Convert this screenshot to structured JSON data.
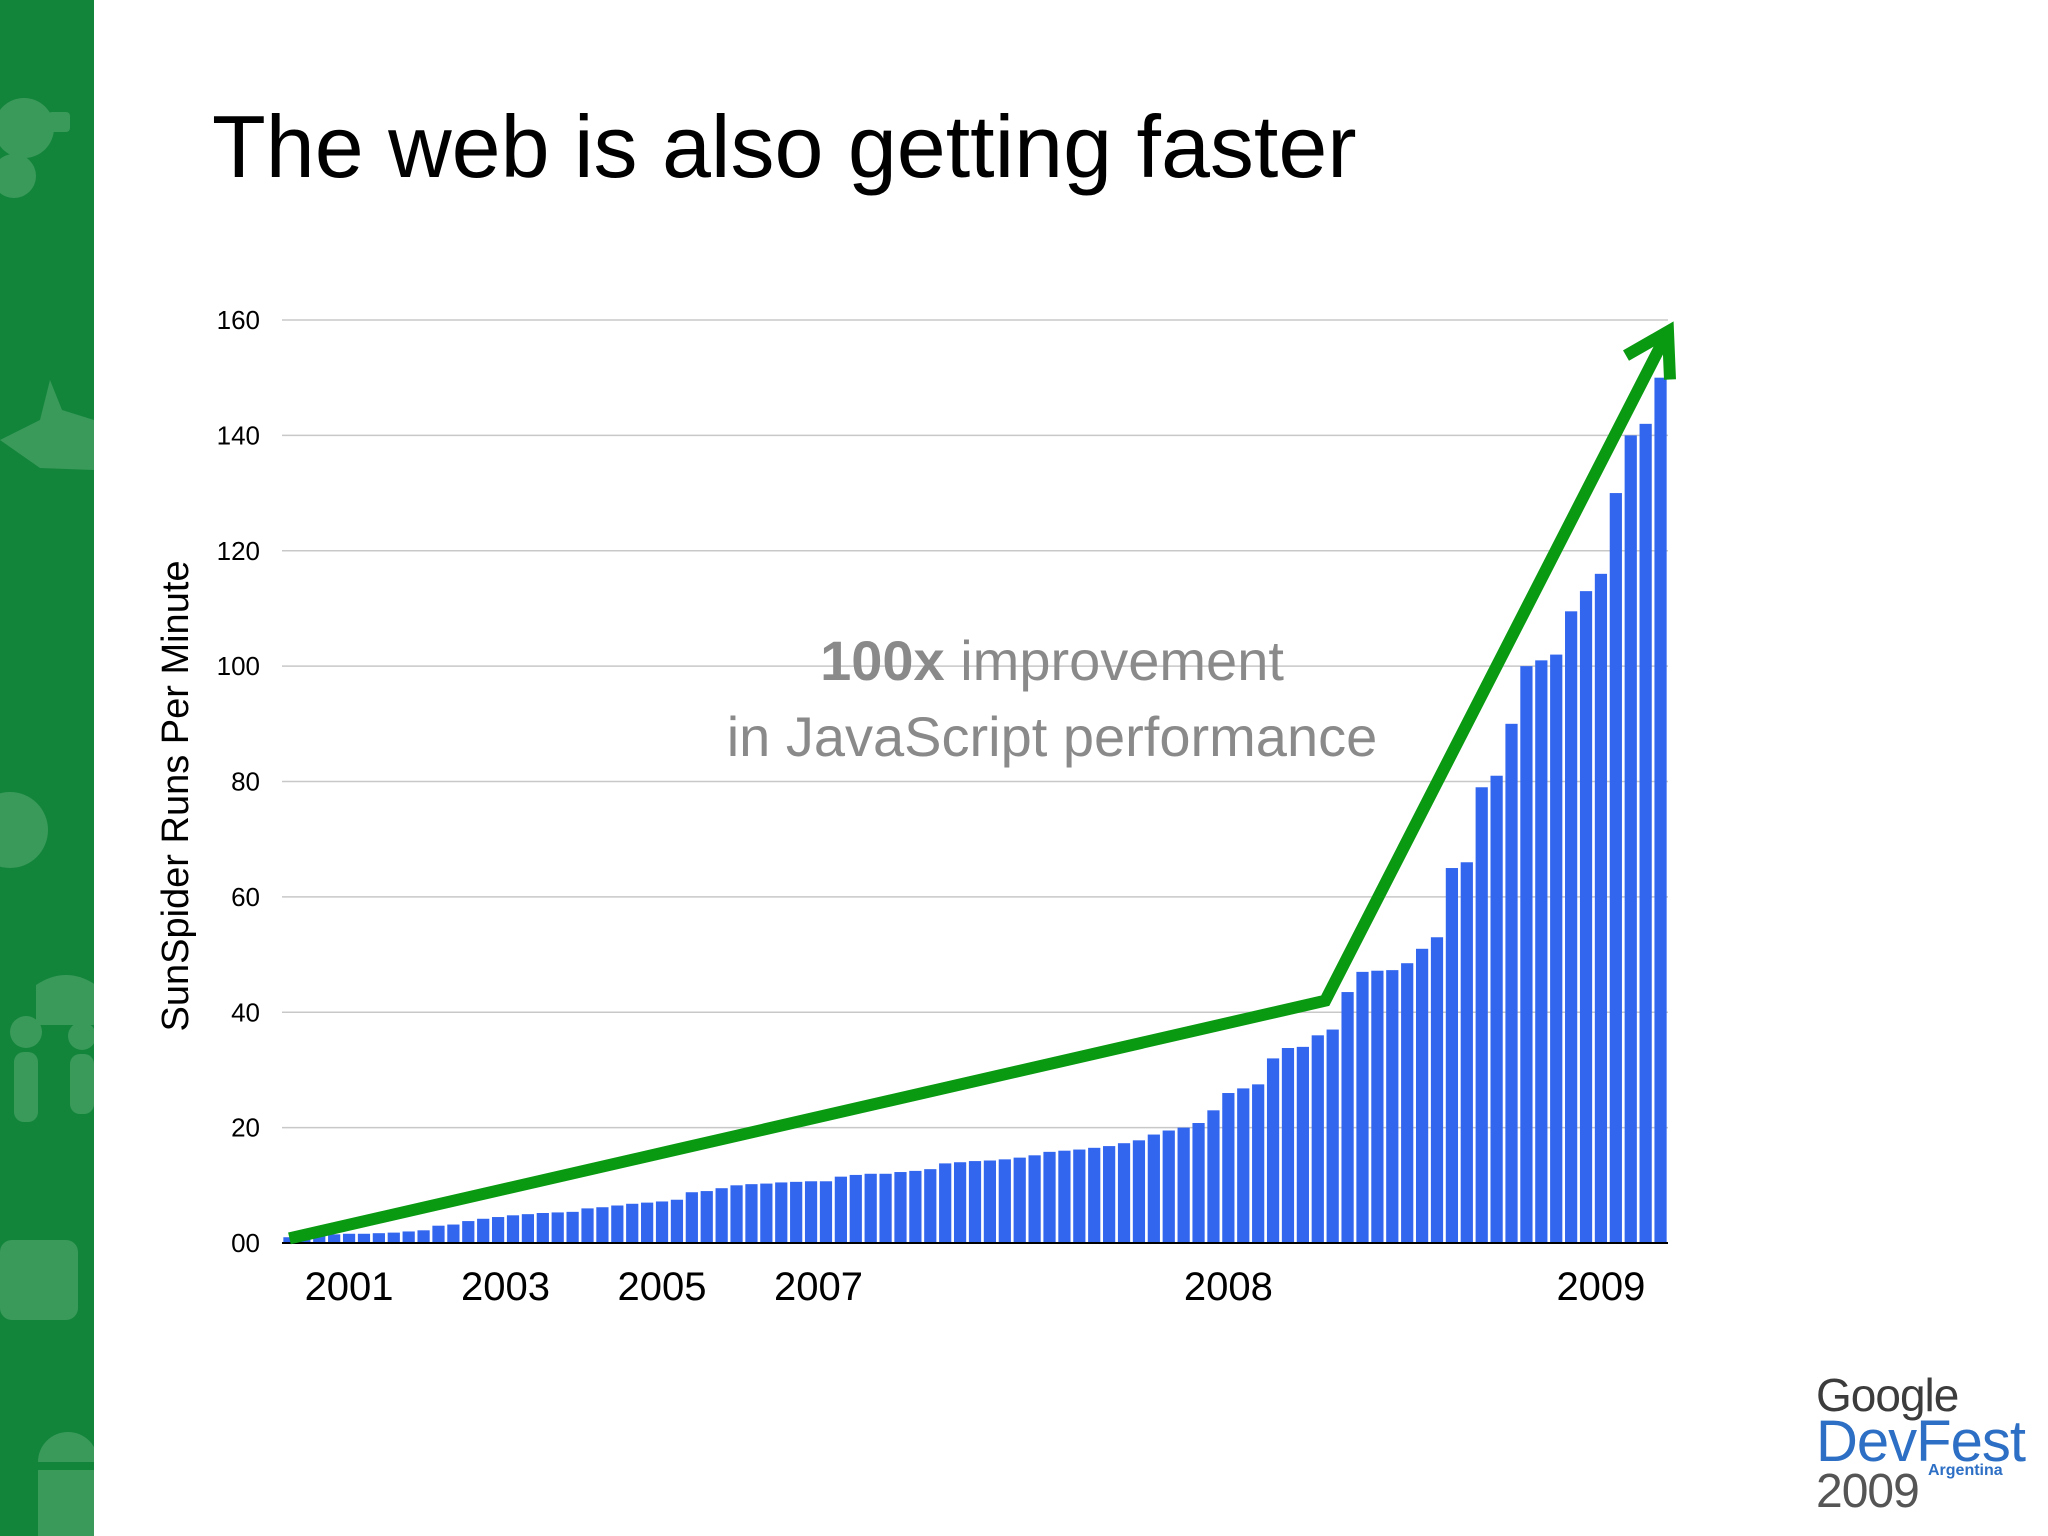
{
  "slide": {
    "title": "The web is also getting faster"
  },
  "colors": {
    "sidebar": "#13853b",
    "bars": "#3366ee",
    "trend": "#0a9a12",
    "gridline": "#c8c8c8",
    "annotation": "#8a8a8a"
  },
  "chart_data": {
    "type": "bar",
    "ylabel": "SunSpider Runs Per Minute",
    "ylim": [
      0,
      160
    ],
    "yticks": [
      "00",
      "20",
      "40",
      "60",
      "80",
      "100",
      "120",
      "140",
      "160"
    ],
    "ytick_values": [
      0,
      20,
      40,
      60,
      80,
      100,
      120,
      140,
      160
    ],
    "xlabels": [
      {
        "label": "2001",
        "bar_index": 4
      },
      {
        "label": "2003",
        "bar_index": 14.5
      },
      {
        "label": "2005",
        "bar_index": 25
      },
      {
        "label": "2007",
        "bar_index": 35.5
      },
      {
        "label": "2008",
        "bar_index": 63
      },
      {
        "label": "2009",
        "bar_index": 88
      }
    ],
    "values": [
      1,
      1.2,
      1.4,
      1.5,
      1.6,
      1.6,
      1.7,
      1.8,
      2,
      2.2,
      3,
      3.2,
      3.8,
      4.2,
      4.5,
      4.8,
      5,
      5.2,
      5.3,
      5.4,
      6,
      6.2,
      6.5,
      6.8,
      7,
      7.2,
      7.5,
      8.8,
      9,
      9.5,
      10,
      10.2,
      10.3,
      10.5,
      10.6,
      10.7,
      10.7,
      11.5,
      11.8,
      12,
      12,
      12.3,
      12.5,
      12.8,
      13.8,
      14,
      14.2,
      14.3,
      14.5,
      14.8,
      15.2,
      15.8,
      16,
      16.2,
      16.5,
      16.8,
      17.3,
      17.8,
      18.8,
      19.5,
      20,
      20.8,
      23,
      26,
      26.8,
      27.5,
      32,
      33.8,
      34,
      36,
      37,
      43.5,
      47,
      47.2,
      47.3,
      48.5,
      51,
      53,
      65,
      66,
      79,
      81,
      90,
      100,
      101,
      102,
      109.5,
      113,
      116,
      130,
      140,
      142,
      150
    ],
    "annotation": {
      "bold": "100x",
      "line1_rest": " improvement",
      "line2": "in JavaScript performance"
    },
    "trend_points": [
      [
        0,
        0.8
      ],
      [
        69.5,
        42
      ],
      [
        92.5,
        158
      ]
    ]
  },
  "logo": {
    "line1": "Google",
    "line2": "DevFest",
    "line3": "2009",
    "line3_suffix": "Argentina"
  }
}
